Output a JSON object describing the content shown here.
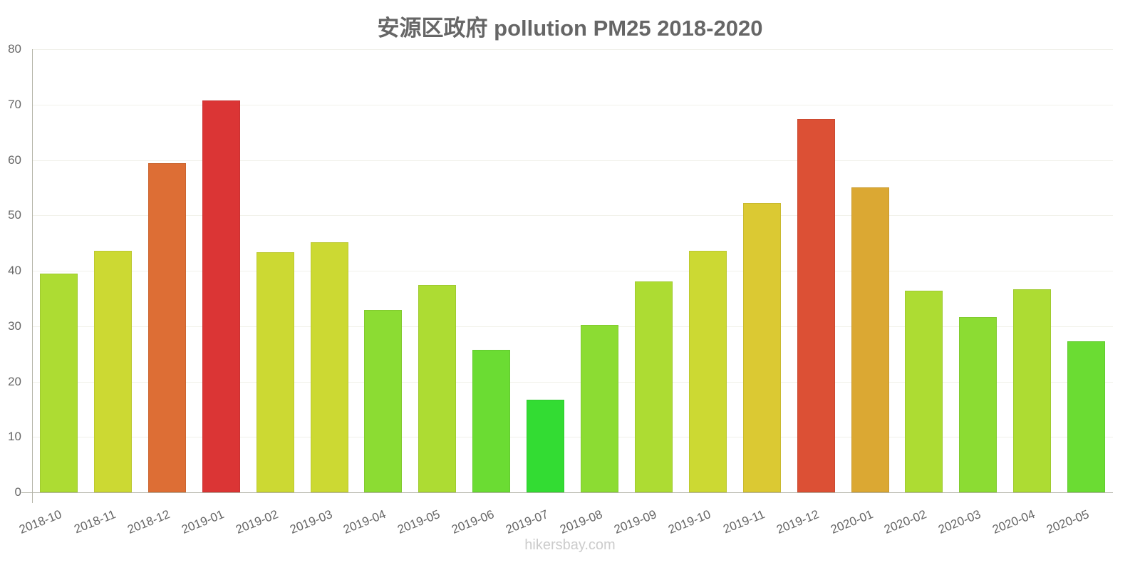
{
  "chart_data": {
    "type": "bar",
    "title": "安源区政府 pollution PM25 2018-2020",
    "xlabel": "",
    "ylabel": "",
    "ylim": [
      0,
      80
    ],
    "yticks": [
      0,
      10,
      20,
      30,
      40,
      50,
      60,
      70,
      80
    ],
    "grid": true,
    "legend": null,
    "categories": [
      "2018-10",
      "2018-11",
      "2018-12",
      "2019-01",
      "2019-02",
      "2019-03",
      "2019-04",
      "2019-05",
      "2019-06",
      "2019-07",
      "2019-08",
      "2019-09",
      "2019-10",
      "2019-11",
      "2019-12",
      "2020-01",
      "2020-02",
      "2020-03",
      "2020-04",
      "2020-05"
    ],
    "values": [
      39.5,
      43.6,
      59.4,
      70.7,
      43.3,
      45.1,
      32.9,
      37.4,
      25.7,
      16.7,
      30.2,
      38.1,
      43.6,
      52.2,
      67.4,
      55.0,
      36.4,
      31.6,
      36.7,
      27.3
    ],
    "colors": [
      "#addc33",
      "#ccd933",
      "#dd6e35",
      "#db3535",
      "#ccd933",
      "#ccd933",
      "#8cdc33",
      "#addc33",
      "#6bdc33",
      "#33dc33",
      "#8cdc33",
      "#addc33",
      "#ccd933",
      "#dbc933",
      "#dc5035",
      "#dba833",
      "#addc33",
      "#8cdc33",
      "#addc33",
      "#6bdc33"
    ]
  },
  "watermark": "hikersbay.com"
}
